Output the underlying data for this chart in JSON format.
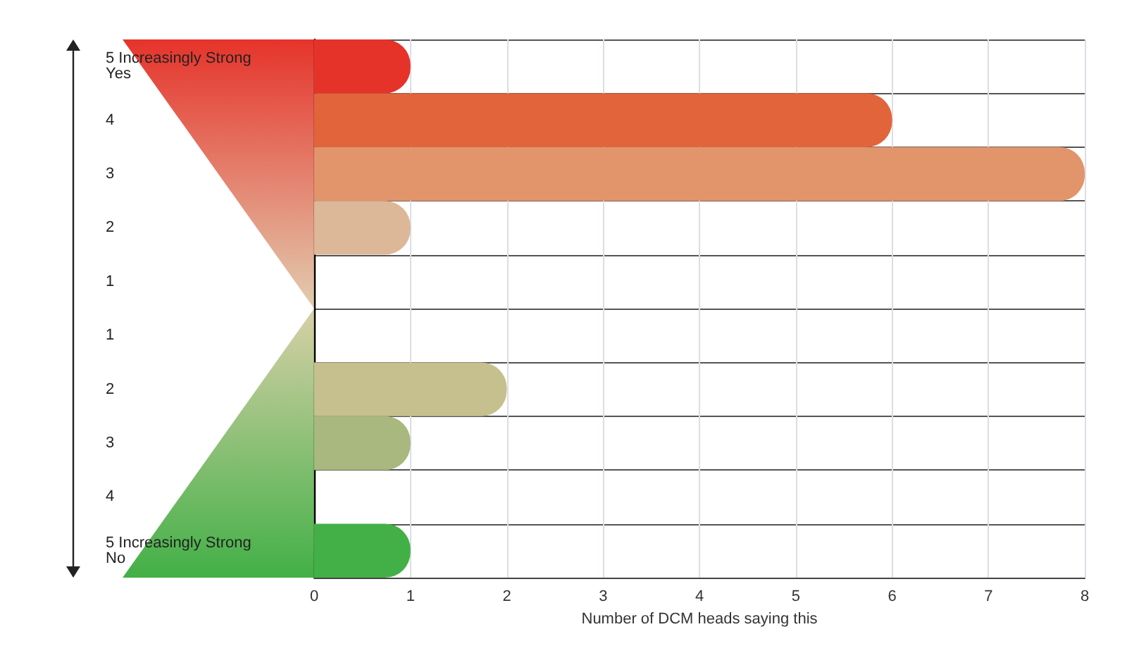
{
  "chart_data": {
    "type": "bar",
    "orientation": "horizontal",
    "xlabel": "Number of DCM heads saying this",
    "categories": [
      "5 Increasingly Strong Yes",
      "4",
      "3",
      "2",
      "1",
      "1",
      "2",
      "3",
      "4",
      "5 Increasingly Strong No"
    ],
    "values": [
      1,
      6,
      8,
      1,
      0,
      0,
      2,
      1,
      0,
      1
    ],
    "colors": [
      "#e6332a",
      "#e2643a",
      "#e2946a",
      "#dcb898",
      "#e2cdb0",
      "#d8d0a8",
      "#c6c08e",
      "#a8b87e",
      "#80b46a",
      "#42b046"
    ],
    "xlim": [
      0,
      8
    ],
    "xticks": [
      0,
      1,
      2,
      3,
      4,
      5,
      6,
      7,
      8
    ],
    "grid": true
  }
}
